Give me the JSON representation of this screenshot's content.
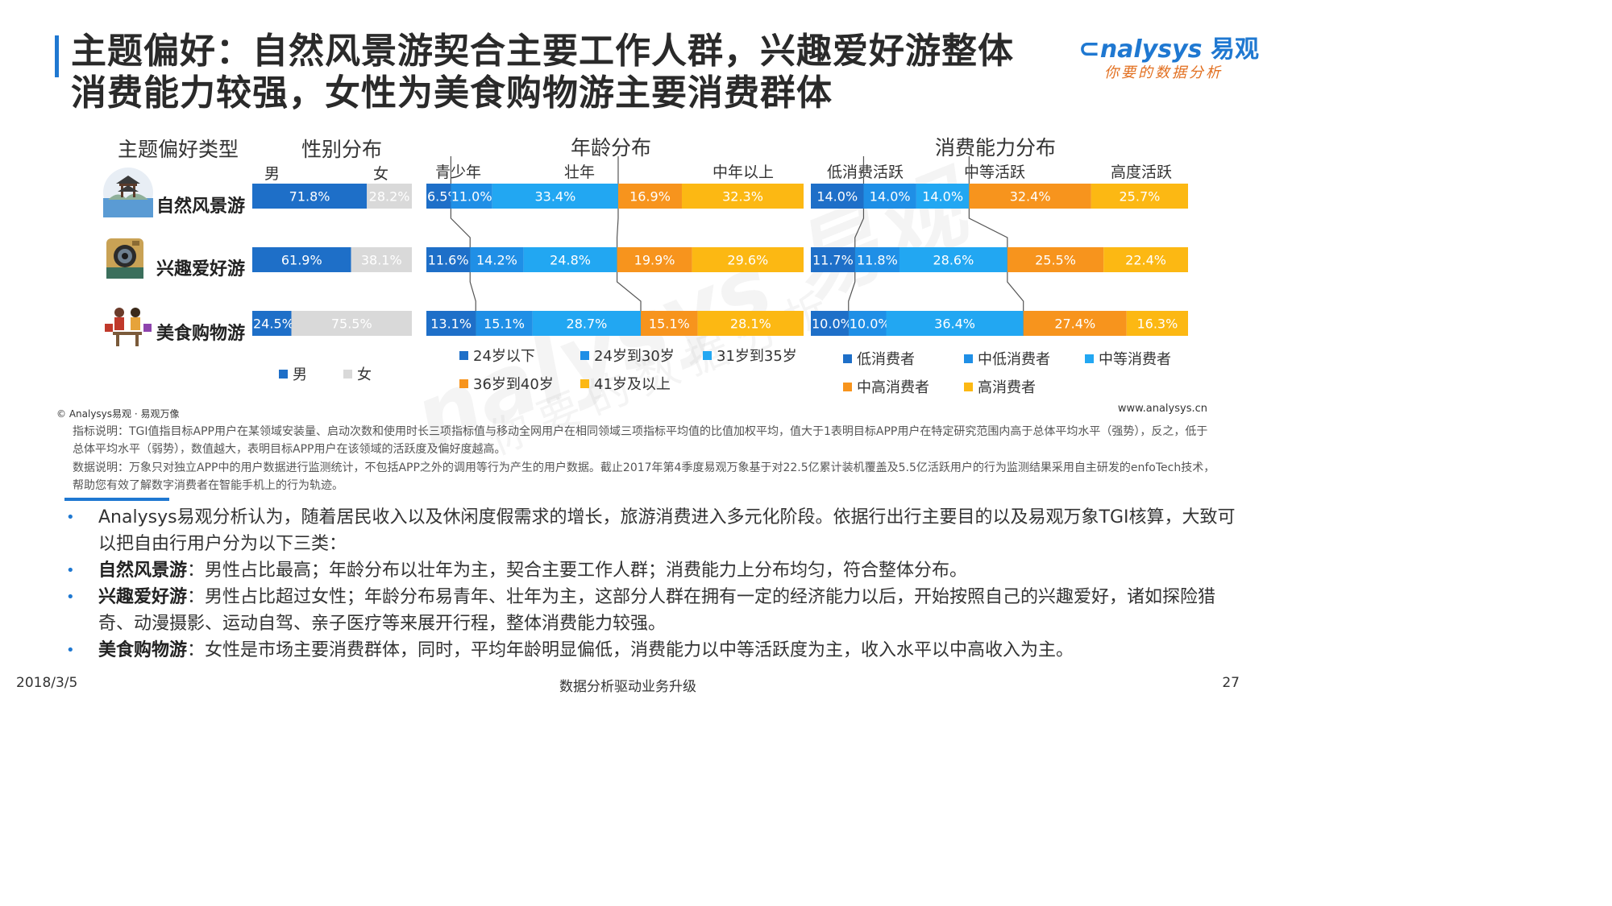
{
  "title": {
    "line1": "主题偏好：自然风景游契合主要工作人群，兴趣爱好游整体",
    "line2": "消费能力较强，女性为美食购物游主要消费群体"
  },
  "logo": {
    "word": "nalysys",
    "cn": "易观",
    "slogan": "你要的数据分析"
  },
  "watermark": {
    "word": "nalysys 易观",
    "slogan": "你要的数据分析"
  },
  "headers": {
    "type": "主题偏好类型",
    "gender": "性别分布",
    "age": "年龄分布",
    "spend": "消费能力分布",
    "male": "男",
    "female": "女",
    "teen": "青少年",
    "prime": "壮年",
    "middle": "中年以上",
    "low_active": "低消费活跃",
    "mid_active": "中等活跃",
    "high_active": "高度活跃"
  },
  "rows": [
    {
      "label": "自然风景游",
      "icon": "pavilion-icon"
    },
    {
      "label": "兴趣爱好游",
      "icon": "camera-icon"
    },
    {
      "label": "美食购物游",
      "icon": "shopping-people-icon"
    }
  ],
  "legend": {
    "gender": [
      "男",
      "女"
    ],
    "age": [
      "24岁以下",
      "24岁到30岁",
      "31岁到35岁",
      "36岁到40岁",
      "41岁及以上"
    ],
    "spend": [
      "低消费者",
      "中低消费者",
      "中等消费者",
      "中高消费者",
      "高消费者"
    ]
  },
  "colors": {
    "blue_dark": "#1e6fc8",
    "blue_mid": "#1f8fe6",
    "blue_light": "#22a7f2",
    "orange": "#f7941d",
    "yellow": "#fcb813",
    "gray": "#d9d9d9",
    "accent": "#1f78d1"
  },
  "chart_data": [
    {
      "type": "bar",
      "stacked": true,
      "orientation": "horizontal",
      "title": "性别分布",
      "categories": [
        "自然风景游",
        "兴趣爱好游",
        "美食购物游"
      ],
      "series": [
        {
          "name": "男",
          "values": [
            71.8,
            61.9,
            24.5
          ],
          "labels": [
            "71.8%",
            "61.9%",
            "24.5%"
          ]
        },
        {
          "name": "女",
          "values": [
            28.2,
            38.1,
            75.5
          ],
          "labels": [
            "28.2%",
            "38.1%",
            "75.5%"
          ]
        }
      ]
    },
    {
      "type": "bar",
      "stacked": true,
      "orientation": "horizontal",
      "title": "年龄分布",
      "categories": [
        "自然风景游",
        "兴趣爱好游",
        "美食购物游"
      ],
      "series": [
        {
          "name": "24岁以下",
          "values": [
            6.5,
            11.6,
            13.1
          ],
          "labels": [
            "6.5%",
            "11.6%",
            "13.1%"
          ]
        },
        {
          "name": "24岁到30岁",
          "values": [
            11.0,
            14.2,
            15.1
          ],
          "labels": [
            "11.0%",
            "14.2%",
            "15.1%"
          ]
        },
        {
          "name": "31岁到35岁",
          "values": [
            33.4,
            24.8,
            28.7
          ],
          "labels": [
            "33.4%",
            "24.8%",
            "28.7%"
          ]
        },
        {
          "name": "36岁到40岁",
          "values": [
            16.9,
            19.9,
            15.1
          ],
          "labels": [
            "16.9%",
            "19.9%",
            "15.1%"
          ]
        },
        {
          "name": "41岁及以上",
          "values": [
            32.3,
            29.6,
            28.1
          ],
          "labels": [
            "32.3%",
            "29.6%",
            "28.1%"
          ]
        }
      ],
      "groups": [
        "青少年",
        "壮年",
        "中年以上"
      ]
    },
    {
      "type": "bar",
      "stacked": true,
      "orientation": "horizontal",
      "title": "消费能力分布",
      "categories": [
        "自然风景游",
        "兴趣爱好游",
        "美食购物游"
      ],
      "series": [
        {
          "name": "低消费者",
          "values": [
            14.0,
            11.7,
            10.0
          ],
          "labels": [
            "14.0%",
            "11.7%",
            "10.0%"
          ]
        },
        {
          "name": "中低消费者",
          "values": [
            14.0,
            11.8,
            10.0
          ],
          "labels": [
            "14.0%",
            "11.8%",
            "10.0%"
          ]
        },
        {
          "name": "中等消费者",
          "values": [
            14.0,
            28.6,
            36.4
          ],
          "labels": [
            "14.0%",
            "28.6%",
            "36.4%"
          ]
        },
        {
          "name": "中高消费者",
          "values": [
            32.4,
            25.5,
            27.4
          ],
          "labels": [
            "32.4%",
            "25.5%",
            "27.4%"
          ]
        },
        {
          "name": "高消费者",
          "values": [
            25.7,
            22.4,
            16.3
          ],
          "labels": [
            "25.7%",
            "22.4%",
            "16.3%"
          ]
        }
      ],
      "groups": [
        "低消费活跃",
        "中等活跃",
        "高度活跃"
      ]
    }
  ],
  "footer": {
    "copyright": "© Analysys易观 · 易观万像",
    "site": "www.analysys.cn",
    "note1": "指标说明：TGI值指目标APP用户在某领域安装量、启动次数和使用时长三项指标值与移动全网用户在相同领域三项指标平均值的比值加权平均，值大于1表明目标APP用户在特定研究范围内高于总体平均水平（强势），反之，低于总体平均水平（弱势），数值越大，表明目标APP用户在该领域的活跃度及偏好度越高。",
    "note2": "数据说明：万象只对独立APP中的用户数据进行监测统计，不包括APP之外的调用等行为产生的用户数据。截止2017年第4季度易观万象基于对22.5亿累计装机覆盖及5.5亿活跃用户的行为监测结果采用自主研发的enfoTech技术，帮助您有效了解数字消费者在智能手机上的行为轨迹。"
  },
  "bullets": [
    {
      "bold": "",
      "text": "Analysys易观分析认为，随着居民收入以及休闲度假需求的增长，旅游消费进入多元化阶段。依据行出行主要目的以及易观万象TGI核算，大致可以把自由行用户分为以下三类："
    },
    {
      "bold": "自然风景游",
      "text": "：男性占比最高；年龄分布以壮年为主，契合主要工作人群；消费能力上分布均匀，符合整体分布。"
    },
    {
      "bold": "兴趣爱好游",
      "text": "：男性占比超过女性；年龄分布易青年、壮年为主，这部分人群在拥有一定的经济能力以后，开始按照自己的兴趣爱好，诸如探险猎奇、动漫摄影、运动自驾、亲子医疗等来展开行程，整体消费能力较强。"
    },
    {
      "bold": "美食购物游",
      "text": "：女性是市场主要消费群体，同时，平均年龄明显偏低，消费能力以中等活跃度为主，收入水平以中高收入为主。"
    }
  ],
  "page": {
    "date": "2018/3/5",
    "footer": "数据分析驱动业务升级",
    "number": "27"
  }
}
